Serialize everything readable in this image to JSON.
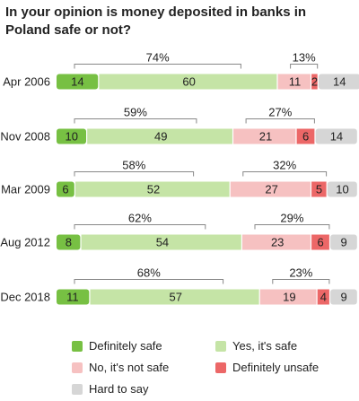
{
  "title": "In your opinion is money deposited in banks in Poland safe or not?",
  "colors": {
    "definitely_safe": "#77c043",
    "yes_safe": "#c5e4a6",
    "no_not_safe": "#f6c1c1",
    "definitely_unsafe": "#ec6767",
    "hard_to_say": "#d6d6d6"
  },
  "chart_data": {
    "type": "bar",
    "orientation": "horizontal",
    "stacked": true,
    "categories": [
      "Apr 2006",
      "Nov 2008",
      "Mar 2009",
      "Aug 2012",
      "Dec 2018"
    ],
    "series": [
      {
        "name": "Definitely safe",
        "values": [
          14,
          10,
          6,
          8,
          11
        ]
      },
      {
        "name": "Yes, it's safe",
        "values": [
          60,
          49,
          52,
          54,
          57
        ]
      },
      {
        "name": "No, it's not safe",
        "values": [
          11,
          21,
          27,
          23,
          19
        ]
      },
      {
        "name": "Definitely unsafe",
        "values": [
          2,
          6,
          5,
          6,
          4
        ]
      },
      {
        "name": "Hard to say",
        "values": [
          14,
          14,
          10,
          9,
          9
        ]
      }
    ],
    "safe_totals": [
      "74%",
      "59%",
      "58%",
      "62%",
      "68%"
    ],
    "unsafe_totals": [
      "13%",
      "27%",
      "32%",
      "29%",
      "23%"
    ],
    "legend_position": "bottom"
  }
}
